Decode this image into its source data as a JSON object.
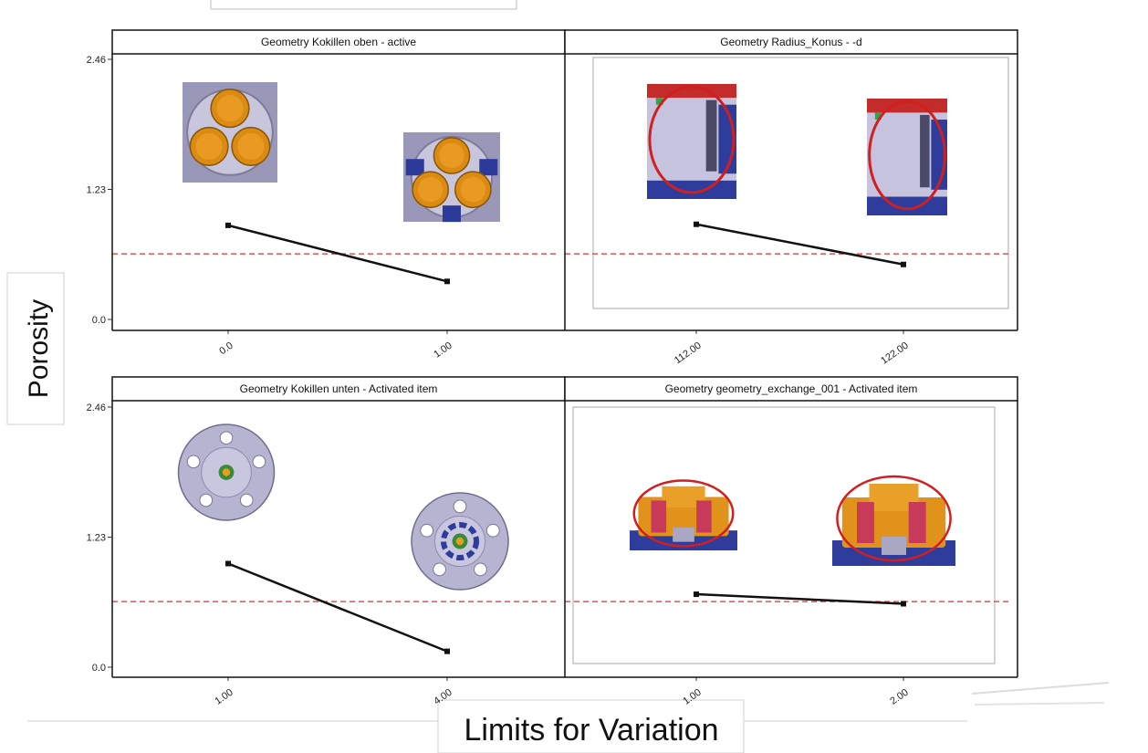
{
  "chart_data": {
    "type": "line",
    "ylabel": "Porosity",
    "xlabel": "Limits for Variation",
    "y_ticks": [
      "0.0",
      "1.23",
      "2.46"
    ],
    "ylim": [
      0,
      2.46
    ],
    "threshold": 0.62,
    "threshold_color": "#e05050",
    "line_color": "#111111",
    "panels": [
      {
        "title": "Geometry Kokillen oben - active",
        "x_ticks": [
          "0.0",
          "1.00"
        ],
        "values": [
          0.89,
          0.36
        ],
        "thumbnails": [
          "orange-three-circle-mold-top",
          "orange-three-circle-mold-blue-inserts"
        ]
      },
      {
        "title": "Geometry Radius_Konus - -d",
        "x_ticks": [
          "112.00",
          "122.00"
        ],
        "values": [
          0.9,
          0.52
        ],
        "thumbnails": [
          "cone-radius-section-circled",
          "cone-radius-section-circled-alt"
        ]
      },
      {
        "title": "Geometry Kokillen unten - Activated item",
        "x_ticks": [
          "1.00",
          "4.00"
        ],
        "values": [
          0.98,
          0.15
        ],
        "thumbnails": [
          "wheel-hub-bottom-mold",
          "wheel-hub-bottom-mold-blue-insert"
        ]
      },
      {
        "title": "Geometry geometry_exchange_001 - Activated item",
        "x_ticks": [
          "1.00",
          "2.00"
        ],
        "values": [
          0.69,
          0.6
        ],
        "thumbnails": [
          "exchange-geometry-circled",
          "exchange-geometry-circled-alt"
        ]
      }
    ]
  }
}
